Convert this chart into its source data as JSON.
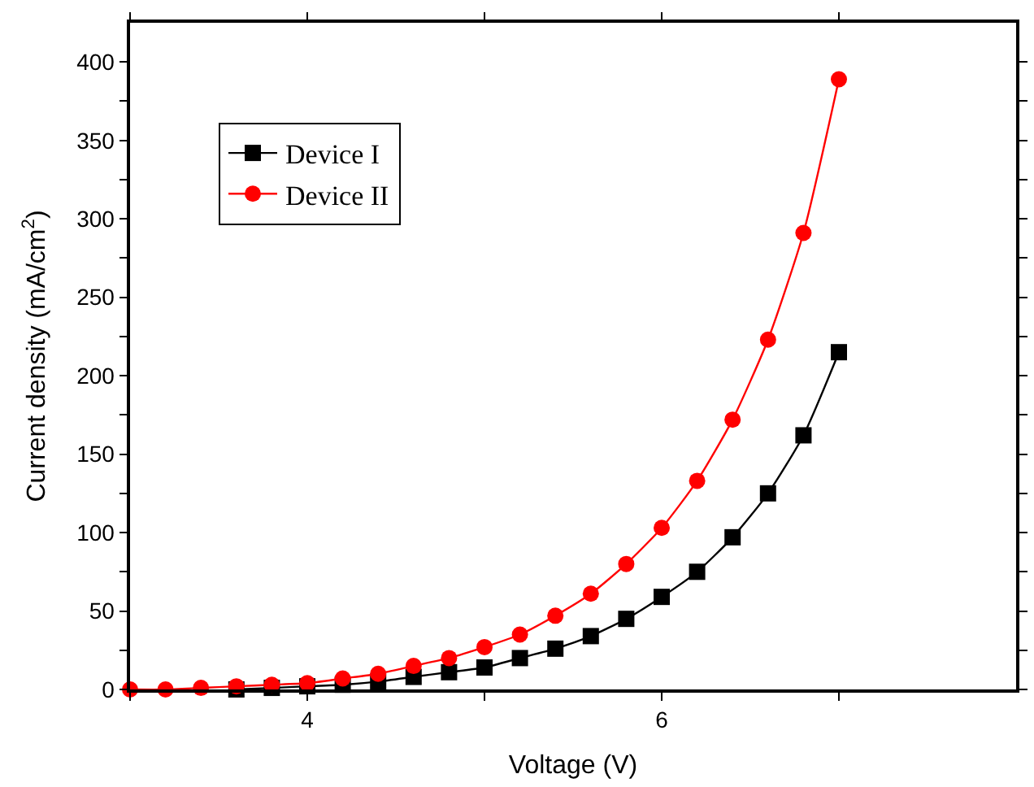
{
  "chart_data": {
    "type": "line",
    "xlabel": "Voltage (V)",
    "ylabel": "Current density (mA/cm$^{2}$)",
    "xlim": [
      3,
      8
    ],
    "ylim": [
      0,
      425
    ],
    "xticks": [
      {
        "value": 3,
        "label": null
      },
      4,
      {
        "value": 5,
        "label": null
      },
      6,
      {
        "value": 7,
        "label": null
      }
    ],
    "yticks": [
      0,
      {
        "value": 25,
        "label": null
      },
      50,
      {
        "value": 75,
        "label": null
      },
      100,
      {
        "value": 125,
        "label": null
      },
      150,
      {
        "value": 175,
        "label": null
      },
      200,
      {
        "value": 225,
        "label": null
      },
      250,
      {
        "value": 275,
        "label": null
      },
      300,
      {
        "value": 325,
        "label": null
      },
      350,
      {
        "value": 375,
        "label": null
      },
      400
    ],
    "legend": "top left",
    "series": [
      {
        "name": "Device I",
        "color": "#000000",
        "marker": "square",
        "x": [
          3.6,
          3.8,
          4.0,
          4.2,
          4.4,
          4.6,
          4.8,
          5.0,
          5.2,
          5.4,
          5.6,
          5.8,
          6.0,
          6.2,
          6.4,
          6.6,
          6.8,
          7.0
        ],
        "values": [
          0,
          1,
          2,
          3,
          5,
          8,
          11,
          14,
          20,
          26,
          34,
          45,
          59,
          75,
          97,
          125,
          162,
          215
        ]
      },
      {
        "name": "Device II",
        "color": "#ff0000",
        "marker": "circle",
        "x": [
          3.0,
          3.2,
          3.4,
          3.6,
          3.8,
          4.0,
          4.2,
          4.4,
          4.6,
          4.8,
          5.0,
          5.2,
          5.4,
          5.6,
          5.8,
          6.0,
          6.2,
          6.4,
          6.6,
          6.8,
          7.0
        ],
        "values": [
          0,
          0,
          1,
          2,
          3,
          4,
          7,
          10,
          15,
          20,
          27,
          35,
          47,
          61,
          80,
          103,
          133,
          172,
          223,
          291,
          389
        ]
      }
    ]
  }
}
